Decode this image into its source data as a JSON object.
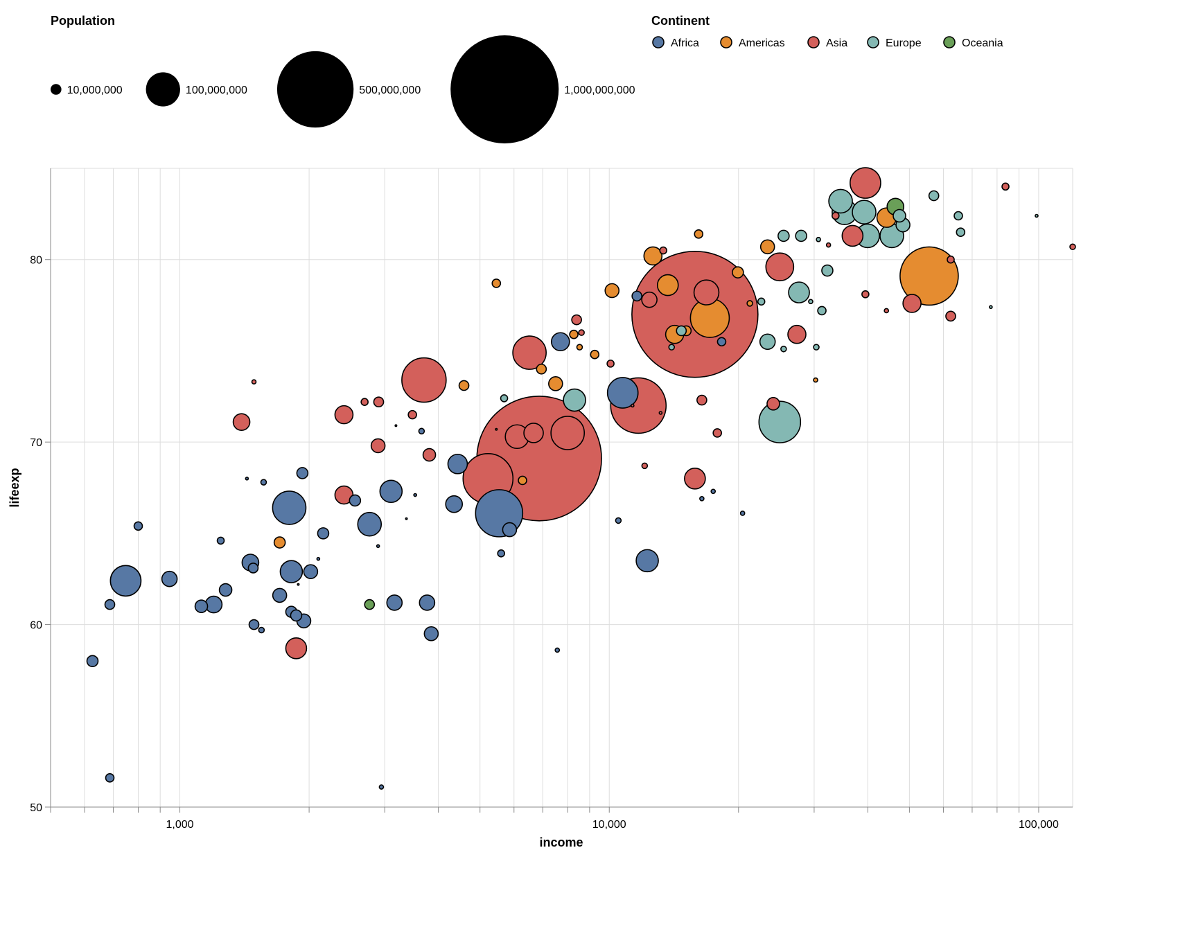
{
  "chart_data": {
    "type": "scatter",
    "title": "",
    "xlabel": "income",
    "ylabel": "lifeexp",
    "x_scale": "log",
    "xlim": [
      500,
      120000
    ],
    "ylim": [
      50,
      85
    ],
    "x_ticks": [
      1000,
      10000,
      100000
    ],
    "x_tick_labels": [
      "1,000",
      "10,000",
      "100,000"
    ],
    "y_ticks": [
      50,
      60,
      70,
      80
    ],
    "y_tick_labels": [
      "50",
      "60",
      "70",
      "80"
    ],
    "grid": true,
    "size_field": "Population",
    "size_legend": {
      "title": "Population",
      "values": [
        10000000,
        100000000,
        500000000,
        1000000000
      ],
      "labels": [
        "10,000,000",
        "100,000,000",
        "500,000,000",
        "1,000,000,000"
      ]
    },
    "color_legend": {
      "title": "Continent",
      "placement": "top",
      "entries": [
        {
          "name": "Africa",
          "color": "#5778a4"
        },
        {
          "name": "Americas",
          "color": "#e58c30"
        },
        {
          "name": "Asia",
          "color": "#d3605b"
        },
        {
          "name": "Europe",
          "color": "#84b8b3"
        },
        {
          "name": "Oceania",
          "color": "#6a9f58"
        }
      ]
    },
    "columns": [
      "continent",
      "income",
      "lifeexp",
      "population"
    ],
    "points": [
      [
        "Africa",
        626,
        58.0,
        10500000
      ],
      [
        "Africa",
        687,
        51.6,
        5900000
      ],
      [
        "Africa",
        687,
        61.1,
        8100000
      ],
      [
        "Africa",
        748,
        62.4,
        80000000
      ],
      [
        "Africa",
        800,
        65.4,
        5900000
      ],
      [
        "Africa",
        946,
        62.5,
        19900000
      ],
      [
        "Africa",
        1122,
        61.0,
        13300000
      ],
      [
        "Africa",
        1199,
        61.1,
        23700000
      ],
      [
        "Africa",
        1245,
        64.6,
        4100000
      ],
      [
        "Africa",
        1278,
        61.9,
        13300000
      ],
      [
        "Africa",
        1460,
        63.4,
        23700000
      ],
      [
        "Africa",
        1482,
        63.1,
        8100000
      ],
      [
        "Africa",
        1488,
        60.0,
        8100000
      ],
      [
        "Africa",
        1549,
        59.7,
        2600000
      ],
      [
        "Africa",
        1567,
        67.8,
        2600000
      ],
      [
        "Africa",
        1708,
        61.6,
        16400000
      ],
      [
        "Africa",
        1798,
        66.4,
        95000000
      ],
      [
        "Africa",
        1818,
        62.9,
        42000000
      ],
      [
        "Africa",
        1818,
        60.7,
        10500000
      ],
      [
        "Africa",
        1866,
        60.5,
        10500000
      ],
      [
        "Africa",
        1929,
        68.3,
        10500000
      ],
      [
        "Africa",
        1944,
        60.2,
        16400000
      ],
      [
        "Africa",
        2017,
        62.9,
        16400000
      ],
      [
        "Africa",
        2157,
        65.0,
        10500000
      ],
      [
        "Africa",
        2558,
        66.8,
        10500000
      ],
      [
        "Africa",
        2765,
        65.5,
        47500000
      ],
      [
        "Africa",
        2947,
        51.1,
        1500000
      ],
      [
        "Africa",
        3103,
        67.3,
        42000000
      ],
      [
        "Africa",
        3161,
        61.2,
        19900000
      ],
      [
        "Africa",
        3655,
        70.6,
        2600000
      ],
      [
        "Africa",
        3765,
        61.2,
        19900000
      ],
      [
        "Africa",
        3850,
        59.5,
        16400000
      ],
      [
        "Africa",
        4350,
        66.6,
        23700000
      ],
      [
        "Africa",
        4435,
        68.8,
        32200000
      ],
      [
        "Africa",
        5540,
        66.1,
        190000000
      ],
      [
        "Africa",
        5860,
        65.2,
        16400000
      ],
      [
        "Africa",
        5600,
        63.9,
        4100000
      ],
      [
        "Africa",
        7568,
        58.6,
        1500000
      ],
      [
        "Africa",
        7697,
        75.5,
        27800000
      ],
      [
        "Africa",
        10500,
        65.7,
        2600000
      ],
      [
        "Africa",
        10750,
        72.7,
        80000000
      ],
      [
        "Africa",
        11600,
        78.0,
        8100000
      ],
      [
        "Africa",
        12260,
        63.5,
        42000000
      ],
      [
        "Africa",
        16430,
        66.9,
        1500000
      ],
      [
        "Africa",
        17460,
        67.3,
        1500000
      ],
      [
        "Africa",
        18270,
        75.5,
        5900000
      ],
      [
        "Africa",
        20440,
        66.1,
        1500000
      ],
      [
        "Africa",
        3370,
        65.8,
        160000
      ],
      [
        "Africa",
        2895,
        64.3,
        660000
      ],
      [
        "Africa",
        1887,
        62.2,
        160000
      ],
      [
        "Africa",
        2101,
        63.6,
        660000
      ],
      [
        "Africa",
        3532,
        67.1,
        660000
      ],
      [
        "Africa",
        3186,
        70.9,
        160000
      ],
      [
        "Africa",
        1433,
        68.0,
        660000
      ],
      [
        "Americas",
        1708,
        64.5,
        10500000
      ],
      [
        "Americas",
        4588,
        73.1,
        8100000
      ],
      [
        "Americas",
        5458,
        78.7,
        5900000
      ],
      [
        "Americas",
        5458,
        70.7,
        160000
      ],
      [
        "Americas",
        6280,
        67.9,
        5900000
      ],
      [
        "Americas",
        6950,
        74.0,
        8100000
      ],
      [
        "Americas",
        7500,
        73.2,
        16400000
      ],
      [
        "Americas",
        8270,
        75.9,
        5900000
      ],
      [
        "Americas",
        8530,
        75.2,
        2600000
      ],
      [
        "Americas",
        9250,
        74.8,
        5900000
      ],
      [
        "Americas",
        10150,
        78.3,
        16400000
      ],
      [
        "Americas",
        12640,
        80.2,
        27800000
      ],
      [
        "Americas",
        13690,
        78.6,
        37000000
      ],
      [
        "Americas",
        14200,
        75.9,
        27800000
      ],
      [
        "Americas",
        15110,
        76.1,
        8100000
      ],
      [
        "Americas",
        17150,
        76.8,
        129000000
      ],
      [
        "Americas",
        16150,
        81.4,
        5900000
      ],
      [
        "Americas",
        19930,
        79.3,
        10500000
      ],
      [
        "Americas",
        21250,
        77.6,
        2600000
      ],
      [
        "Americas",
        23370,
        80.7,
        16400000
      ],
      [
        "Americas",
        30240,
        73.4,
        1500000
      ],
      [
        "Americas",
        44260,
        82.3,
        32200000
      ],
      [
        "Americas",
        55590,
        79.1,
        290000000
      ],
      [
        "Asia",
        1392,
        71.1,
        23700000
      ],
      [
        "Asia",
        1488,
        73.3,
        1500000
      ],
      [
        "Asia",
        1866,
        58.7,
        37000000
      ],
      [
        "Asia",
        2411,
        71.5,
        27800000
      ],
      [
        "Asia",
        2411,
        67.1,
        27800000
      ],
      [
        "Asia",
        2693,
        72.2,
        4100000
      ],
      [
        "Asia",
        2904,
        72.2,
        8100000
      ],
      [
        "Asia",
        2895,
        69.8,
        16400000
      ],
      [
        "Asia",
        3480,
        71.5,
        5900000
      ],
      [
        "Asia",
        3703,
        73.4,
        168000000
      ],
      [
        "Asia",
        3810,
        69.3,
        13300000
      ],
      [
        "Asia",
        5220,
        68.0,
        213000000
      ],
      [
        "Asia",
        6100,
        70.3,
        47500000
      ],
      [
        "Asia",
        6520,
        74.9,
        95000000
      ],
      [
        "Asia",
        6665,
        70.5,
        32200000
      ],
      [
        "Asia",
        6868,
        69.1,
        1330000000
      ],
      [
        "Asia",
        8000,
        70.5,
        95000000
      ],
      [
        "Asia",
        8394,
        76.7,
        8100000
      ],
      [
        "Asia",
        8616,
        76.0,
        2600000
      ],
      [
        "Asia",
        10070,
        74.3,
        4100000
      ],
      [
        "Asia",
        11330,
        72.0,
        660000
      ],
      [
        "Asia",
        11690,
        72.0,
        263000000
      ],
      [
        "Asia",
        12400,
        77.8,
        19900000
      ],
      [
        "Asia",
        13360,
        80.5,
        4100000
      ],
      [
        "Asia",
        12090,
        68.7,
        2600000
      ],
      [
        "Asia",
        13170,
        71.6,
        660000
      ],
      [
        "Asia",
        15830,
        77.0,
        1360000000
      ],
      [
        "Asia",
        15830,
        68.0,
        37000000
      ],
      [
        "Asia",
        16430,
        72.3,
        8100000
      ],
      [
        "Asia",
        16840,
        78.2,
        53000000
      ],
      [
        "Asia",
        17850,
        70.5,
        5900000
      ],
      [
        "Asia",
        24100,
        72.1,
        13300000
      ],
      [
        "Asia",
        24950,
        79.6,
        66000000
      ],
      [
        "Asia",
        27350,
        75.9,
        27800000
      ],
      [
        "Asia",
        32400,
        80.8,
        1500000
      ],
      [
        "Asia",
        33650,
        82.4,
        4100000
      ],
      [
        "Asia",
        36860,
        81.3,
        37000000
      ],
      [
        "Asia",
        39490,
        84.2,
        80000000
      ],
      [
        "Asia",
        39490,
        78.1,
        4100000
      ],
      [
        "Asia",
        44200,
        77.2,
        1500000
      ],
      [
        "Asia",
        50700,
        77.6,
        27800000
      ],
      [
        "Asia",
        62400,
        80.0,
        4100000
      ],
      [
        "Asia",
        62400,
        76.9,
        8100000
      ],
      [
        "Asia",
        83700,
        84.0,
        4100000
      ],
      [
        "Asia",
        120000,
        80.7,
        2600000
      ],
      [
        "Europe",
        5691,
        72.4,
        4100000
      ],
      [
        "Europe",
        8300,
        72.3,
        42000000
      ],
      [
        "Europe",
        13970,
        75.2,
        2600000
      ],
      [
        "Europe",
        14720,
        76.1,
        8100000
      ],
      [
        "Europe",
        22600,
        77.7,
        4100000
      ],
      [
        "Europe",
        23370,
        75.5,
        19900000
      ],
      [
        "Europe",
        24950,
        71.1,
        148000000
      ],
      [
        "Europe",
        25470,
        81.3,
        10500000
      ],
      [
        "Europe",
        25470,
        75.1,
        2600000
      ],
      [
        "Europe",
        27980,
        81.3,
        10500000
      ],
      [
        "Europe",
        27660,
        78.2,
        37000000
      ],
      [
        "Europe",
        29450,
        77.7,
        1500000
      ],
      [
        "Europe",
        30350,
        75.2,
        2600000
      ],
      [
        "Europe",
        30700,
        81.1,
        1500000
      ],
      [
        "Europe",
        31270,
        77.2,
        5900000
      ],
      [
        "Europe",
        32200,
        79.4,
        10500000
      ],
      [
        "Europe",
        34570,
        83.2,
        47500000
      ],
      [
        "Europe",
        35320,
        82.6,
        53000000
      ],
      [
        "Europe",
        39220,
        82.6,
        47500000
      ],
      [
        "Europe",
        39960,
        81.3,
        47500000
      ],
      [
        "Europe",
        45500,
        81.3,
        47500000
      ],
      [
        "Europe",
        47400,
        82.4,
        13300000
      ],
      [
        "Europe",
        48300,
        81.9,
        16400000
      ],
      [
        "Europe",
        57000,
        83.5,
        8100000
      ],
      [
        "Europe",
        65000,
        82.4,
        5900000
      ],
      [
        "Europe",
        65800,
        81.5,
        5900000
      ],
      [
        "Europe",
        98900,
        82.4,
        660000
      ],
      [
        "Europe",
        77370,
        77.4,
        660000
      ],
      [
        "Oceania",
        2765,
        61.1,
        8100000
      ],
      [
        "Oceania",
        46390,
        82.9,
        23700000
      ]
    ]
  }
}
